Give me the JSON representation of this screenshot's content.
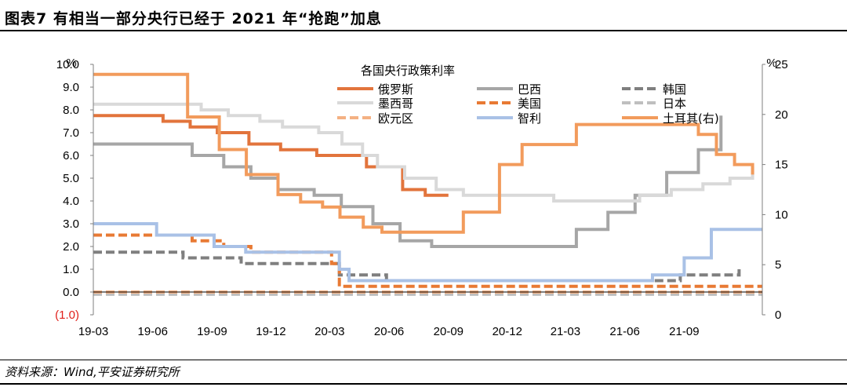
{
  "header": {
    "figure_title": "图表7 有相当一部分央行已经于 2021 年“抢跑”加息"
  },
  "footer": {
    "source": "资料来源：Wind,平安证券研究所"
  },
  "chart_data": {
    "type": "line",
    "title": "各国央行政策利率",
    "left_axis": {
      "unit": "%",
      "ylim": [
        -1.0,
        10.0
      ],
      "ticks": [
        "(1.0)",
        "0.0",
        "1.0",
        "2.0",
        "3.0",
        "4.0",
        "5.0",
        "6.0",
        "7.0",
        "8.0",
        "9.0",
        "10.0"
      ],
      "negative_tick_color": "#e0201b"
    },
    "right_axis": {
      "unit": "%",
      "ylim": [
        0,
        25
      ],
      "ticks": [
        "0",
        "5",
        "10",
        "15",
        "20",
        "25"
      ]
    },
    "x_ticks": [
      "19-03",
      "19-06",
      "19-09",
      "19-12",
      "20-03",
      "20-06",
      "20-09",
      "20-12",
      "21-03",
      "21-06",
      "21-09"
    ],
    "x_range": [
      "2019-03-01",
      "2021-12-31"
    ],
    "legend_position": "top",
    "series": [
      {
        "name": "俄罗斯",
        "axis": "left",
        "color": "#e2743c",
        "dashed": false,
        "points": [
          [
            "2019-03-01",
            7.75
          ],
          [
            "2019-06-17",
            7.5
          ],
          [
            "2019-07-29",
            7.25
          ],
          [
            "2019-09-09",
            7.0
          ],
          [
            "2019-10-28",
            6.5
          ],
          [
            "2019-12-16",
            6.25
          ],
          [
            "2020-02-10",
            6.0
          ],
          [
            "2020-04-27",
            5.5
          ],
          [
            "2020-06-22",
            4.5
          ],
          [
            "2020-07-27",
            4.25
          ],
          [
            "2020-09-01",
            4.25
          ]
        ]
      },
      {
        "name": "巴西",
        "axis": "left",
        "color": "#a6a6a6",
        "dashed": false,
        "points": [
          [
            "2019-03-01",
            6.5
          ],
          [
            "2019-08-01",
            6.0
          ],
          [
            "2019-09-19",
            5.5
          ],
          [
            "2019-10-31",
            5.0
          ],
          [
            "2019-12-12",
            4.5
          ],
          [
            "2020-02-06",
            4.25
          ],
          [
            "2020-03-19",
            3.75
          ],
          [
            "2020-05-07",
            3.0
          ],
          [
            "2020-06-18",
            2.25
          ],
          [
            "2020-08-06",
            2.0
          ],
          [
            "2021-03-18",
            2.75
          ],
          [
            "2021-05-06",
            3.5
          ],
          [
            "2021-06-17",
            4.25
          ],
          [
            "2021-08-05",
            5.25
          ],
          [
            "2021-09-23",
            6.25
          ],
          [
            "2021-10-28",
            7.75
          ]
        ]
      },
      {
        "name": "韩国",
        "axis": "left",
        "color": "#7f7f7f",
        "dashed": true,
        "points": [
          [
            "2019-03-01",
            1.75
          ],
          [
            "2019-07-18",
            1.5
          ],
          [
            "2019-10-16",
            1.25
          ],
          [
            "2020-03-16",
            0.75
          ],
          [
            "2020-05-28",
            0.5
          ],
          [
            "2021-08-26",
            0.75
          ],
          [
            "2021-11-25",
            1.0
          ]
        ]
      },
      {
        "name": "墨西哥",
        "axis": "left",
        "color": "#d9d9d9",
        "dashed": false,
        "points": [
          [
            "2019-03-01",
            8.25
          ],
          [
            "2019-08-15",
            8.0
          ],
          [
            "2019-09-26",
            7.75
          ],
          [
            "2019-11-14",
            7.5
          ],
          [
            "2019-12-19",
            7.25
          ],
          [
            "2020-02-13",
            7.0
          ],
          [
            "2020-03-20",
            6.5
          ],
          [
            "2020-03-23",
            6.5
          ],
          [
            "2020-04-21",
            6.0
          ],
          [
            "2020-05-14",
            5.5
          ],
          [
            "2020-06-25",
            5.0
          ],
          [
            "2020-08-13",
            4.5
          ],
          [
            "2020-09-24",
            4.25
          ],
          [
            "2021-02-11",
            4.0
          ],
          [
            "2021-06-24",
            4.25
          ],
          [
            "2021-08-12",
            4.5
          ],
          [
            "2021-09-30",
            4.75
          ],
          [
            "2021-11-11",
            5.0
          ],
          [
            "2021-12-16",
            5.5
          ]
        ]
      },
      {
        "name": "美国",
        "axis": "left",
        "color": "#e87a34",
        "dashed": true,
        "points": [
          [
            "2019-03-01",
            2.5
          ],
          [
            "2019-08-01",
            2.25
          ],
          [
            "2019-09-19",
            2.0
          ],
          [
            "2019-10-31",
            1.75
          ],
          [
            "2020-03-04",
            1.25
          ],
          [
            "2020-03-16",
            0.25
          ],
          [
            "2021-12-31",
            0.25
          ]
        ]
      },
      {
        "name": "日本",
        "axis": "left",
        "color": "#bfbfbf",
        "dashed": true,
        "points": [
          [
            "2019-03-01",
            -0.1
          ],
          [
            "2021-12-31",
            -0.1
          ]
        ]
      },
      {
        "name": "欧元区",
        "axis": "left",
        "color": "#f4b183",
        "dashed": true,
        "points": [
          [
            "2019-03-01",
            0.0
          ],
          [
            "2021-12-31",
            0.0
          ]
        ]
      },
      {
        "name": "智利",
        "axis": "left",
        "color": "#a9c1e6",
        "dashed": false,
        "points": [
          [
            "2019-03-01",
            3.0
          ],
          [
            "2019-06-07",
            2.5
          ],
          [
            "2019-09-04",
            2.0
          ],
          [
            "2019-10-23",
            1.75
          ],
          [
            "2020-03-16",
            1.0
          ],
          [
            "2020-03-31",
            0.5
          ],
          [
            "2021-07-14",
            0.75
          ],
          [
            "2021-09-01",
            1.5
          ],
          [
            "2021-10-13",
            2.75
          ],
          [
            "2021-12-31",
            2.75
          ]
        ]
      },
      {
        "name": "土耳其(右)",
        "axis": "right",
        "color": "#f29b5c",
        "dashed": false,
        "points": [
          [
            "2019-03-01",
            24.0
          ],
          [
            "2019-07-25",
            19.75
          ],
          [
            "2019-09-12",
            16.5
          ],
          [
            "2019-10-24",
            14.0
          ],
          [
            "2019-12-12",
            12.0
          ],
          [
            "2020-01-16",
            11.25
          ],
          [
            "2020-02-19",
            10.75
          ],
          [
            "2020-03-17",
            9.75
          ],
          [
            "2020-04-22",
            8.75
          ],
          [
            "2020-05-21",
            8.25
          ],
          [
            "2020-09-24",
            10.25
          ],
          [
            "2020-11-19",
            15.0
          ],
          [
            "2020-12-24",
            17.0
          ],
          [
            "2021-03-18",
            19.0
          ],
          [
            "2021-09-23",
            18.0
          ],
          [
            "2021-10-21",
            16.0
          ],
          [
            "2021-11-18",
            15.0
          ],
          [
            "2021-12-16",
            14.0
          ]
        ]
      }
    ]
  }
}
